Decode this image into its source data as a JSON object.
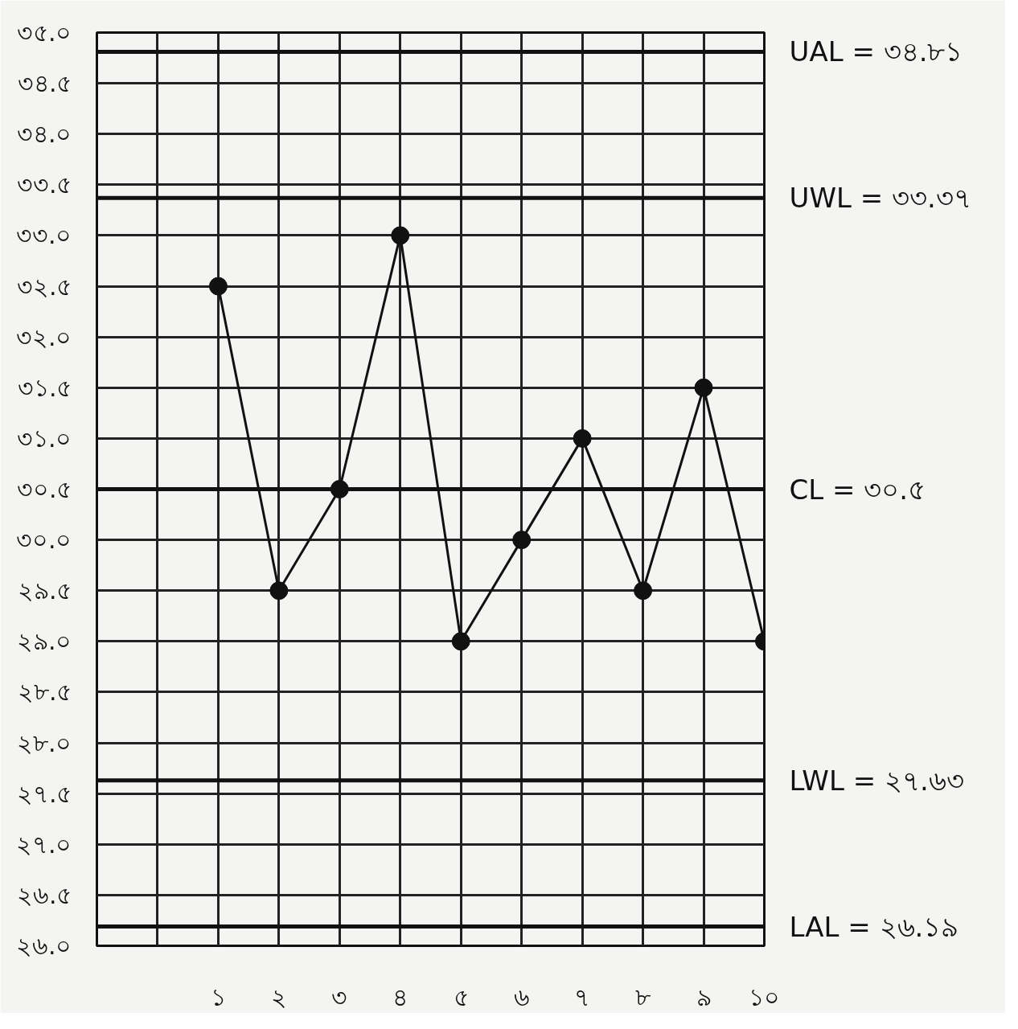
{
  "chart_data": {
    "type": "line",
    "x": [
      1,
      2,
      3,
      4,
      5,
      6,
      7,
      8,
      9,
      10
    ],
    "series": [
      {
        "color": "#111111",
        "values": [
          32.5,
          29.5,
          30.5,
          33.0,
          29.0,
          30.0,
          31.0,
          29.5,
          31.5,
          29.0
        ]
      }
    ],
    "xlim": [
      -1,
      10
    ],
    "xticks": [
      {
        "value": -1,
        "label": null
      },
      {
        "value": 0,
        "label": null
      },
      {
        "value": 1,
        "label": "১"
      },
      {
        "value": 2,
        "label": "২"
      },
      {
        "value": 3,
        "label": "৩"
      },
      {
        "value": 4,
        "label": "৪"
      },
      {
        "value": 5,
        "label": "৫"
      },
      {
        "value": 6,
        "label": "৬"
      },
      {
        "value": 7,
        "label": "৭"
      },
      {
        "value": 8,
        "label": "৮"
      },
      {
        "value": 9,
        "label": "৯"
      },
      {
        "value": 10,
        "label": "১০"
      }
    ],
    "ylim": [
      26.0,
      35.0
    ],
    "yticks": [
      {
        "value": 26.0,
        "label": "২৬.০"
      },
      {
        "value": 26.5,
        "label": "২৬.৫"
      },
      {
        "value": 27.0,
        "label": "২৭.০"
      },
      {
        "value": 27.5,
        "label": "২৭.৫"
      },
      {
        "value": 28.0,
        "label": "২৮.০"
      },
      {
        "value": 28.5,
        "label": "২৮.৫"
      },
      {
        "value": 29.0,
        "label": "২৯.০"
      },
      {
        "value": 29.5,
        "label": "২৯.৫"
      },
      {
        "value": 30.0,
        "label": "৩০.০"
      },
      {
        "value": 30.5,
        "label": "৩০.৫"
      },
      {
        "value": 31.0,
        "label": "৩১.০"
      },
      {
        "value": 31.5,
        "label": "৩১.৫"
      },
      {
        "value": 32.0,
        "label": "৩২.০"
      },
      {
        "value": 32.5,
        "label": "৩২.৫"
      },
      {
        "value": 33.0,
        "label": "৩৩.০"
      },
      {
        "value": 33.5,
        "label": "৩৩.৫"
      },
      {
        "value": 34.0,
        "label": "৩৪.০"
      },
      {
        "value": 34.5,
        "label": "৩৪.৫"
      },
      {
        "value": 35.0,
        "label": "৩৫.০"
      }
    ],
    "ref_lines": [
      {
        "axis": "y",
        "value": 34.81,
        "label": "UAL = ৩৪.৮১",
        "color": "#111111"
      },
      {
        "axis": "y",
        "value": 33.37,
        "label": "UWL = ৩৩.৩৭",
        "color": "#111111"
      },
      {
        "axis": "y",
        "value": 30.5,
        "label": "CL = ৩০.৫",
        "color": "#111111"
      },
      {
        "axis": "y",
        "value": 27.63,
        "label": "LWL = ২৭.৬৩",
        "color": "#111111"
      },
      {
        "axis": "y",
        "value": 26.19,
        "label": "LAL = ২৬.১৯",
        "color": "#111111"
      }
    ],
    "grid": true,
    "marker": "circle",
    "line_style": "solid"
  }
}
